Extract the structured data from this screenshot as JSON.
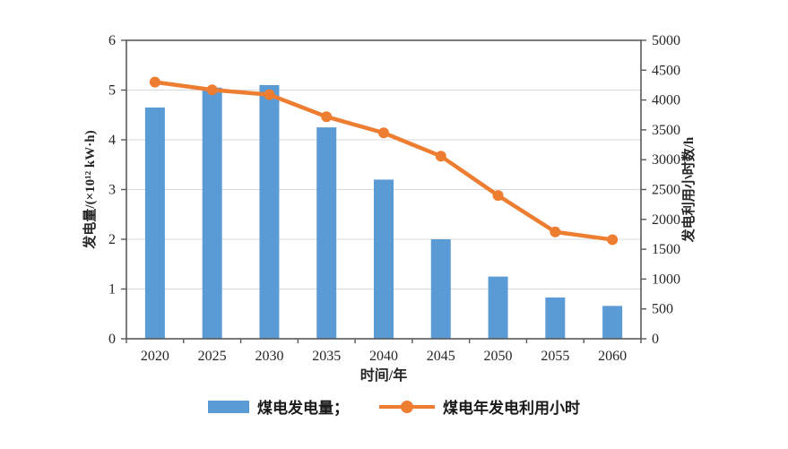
{
  "chart_data": {
    "type": "bar+line combo",
    "title": "",
    "categories": [
      "2020",
      "2025",
      "2030",
      "2035",
      "2040",
      "2045",
      "2050",
      "2055",
      "2060"
    ],
    "series": [
      {
        "name": "煤电发电量",
        "type": "bar",
        "axis": "left",
        "color": "#5B9BD5",
        "values": [
          4.65,
          5.05,
          5.1,
          4.25,
          3.2,
          2.0,
          1.25,
          0.83,
          0.66
        ]
      },
      {
        "name": "煤电年发电利用小时",
        "type": "line",
        "axis": "right",
        "color": "#ED7D31",
        "values": [
          4300,
          4170,
          4090,
          3720,
          3450,
          3060,
          2400,
          1790,
          1660
        ]
      }
    ],
    "xlabel": "时间/年",
    "axes": {
      "left": {
        "label": "发电量/(×10¹² kW·h)",
        "min": 0,
        "max": 6,
        "ticks": [
          "0",
          "1",
          "2",
          "3",
          "4",
          "5",
          "6"
        ]
      },
      "right": {
        "label": "发电利用小时数/h",
        "min": 0,
        "max": 5000,
        "ticks": [
          "0",
          "500",
          "1000",
          "1500",
          "2000",
          "2500",
          "3000",
          "3500",
          "4000",
          "4500",
          "5000"
        ]
      }
    },
    "grid": "horizontal, light gray, at left-axis integers",
    "legend_position": "bottom-center",
    "legend": [
      {
        "label": "煤电发电量；",
        "swatch": "bar"
      },
      {
        "label": "煤电年发电利用小时",
        "swatch": "line-marker"
      }
    ],
    "colors": {
      "bar": "#5B9BD5",
      "line": "#ED7D31",
      "axis": "#595959",
      "gridline": "#D9D9D9",
      "text": "#262626"
    }
  }
}
